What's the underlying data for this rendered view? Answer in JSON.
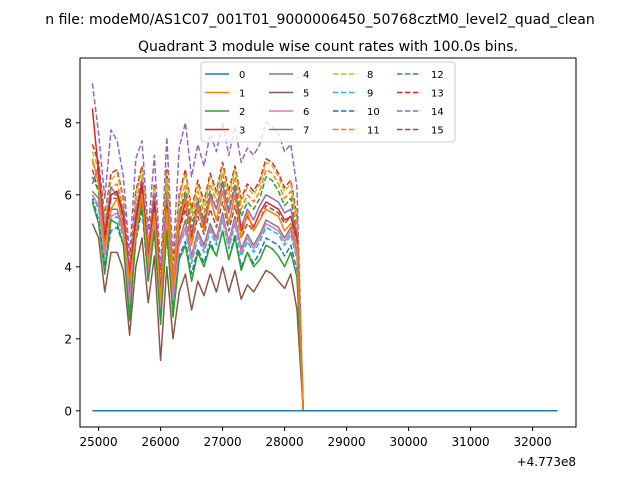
{
  "chart_data": {
    "type": "line",
    "suptitle": "n file: modeM0/AS1C07_001T01_9000006450_50768cztM0_level2_quad_clean",
    "title": "Quadrant 3 module wise count rates with 100.0s bins.",
    "xlabel": "",
    "ylabel": "",
    "x_offset_label": "+4.773e8",
    "xlim": [
      24700,
      32700
    ],
    "ylim": [
      -0.45,
      9.8
    ],
    "x_ticks": [
      25000,
      26000,
      27000,
      28000,
      29000,
      30000,
      31000,
      32000
    ],
    "x_tick_labels": [
      "25000",
      "26000",
      "27000",
      "28000",
      "29000",
      "30000",
      "31000",
      "32000"
    ],
    "y_ticks": [
      0,
      2,
      4,
      6,
      8
    ],
    "y_tick_labels": [
      "0",
      "2",
      "4",
      "6",
      "8"
    ],
    "x_start": 24900,
    "x_step": 100,
    "grid": false,
    "legend_position": "top-center",
    "legend_columns": 4,
    "series": [
      {
        "name": "0",
        "color": "#1f77b4",
        "dash": "solid",
        "values": [
          0,
          0,
          0,
          0,
          0,
          0,
          0,
          0,
          0,
          0,
          0,
          0,
          0,
          0,
          0,
          0,
          0,
          0,
          0,
          0,
          0,
          0,
          0,
          0,
          0,
          0,
          0,
          0,
          0,
          0,
          0,
          0,
          0,
          0,
          0,
          0,
          0,
          0,
          0,
          0,
          0,
          0,
          0,
          0,
          0,
          0,
          0,
          0,
          0,
          0,
          0,
          0,
          0,
          0,
          0,
          0,
          0,
          0,
          0,
          0,
          0,
          0,
          0,
          0,
          0,
          0,
          0,
          0,
          0,
          0,
          0,
          0,
          0,
          0,
          0,
          0
        ]
      },
      {
        "name": "1",
        "color": "#ff7f0e",
        "dash": "solid",
        "values": [
          7.0,
          6.3,
          4.5,
          5.6,
          5.9,
          5.1,
          3.6,
          4.9,
          6.0,
          4.1,
          5.5,
          3.1,
          5.6,
          3.4,
          5.3,
          5.9,
          4.6,
          5.7,
          5.0,
          5.9,
          5.3,
          6.1,
          5.2,
          6.0,
          4.8,
          5.5,
          5.0,
          5.3,
          5.6,
          5.5,
          5.4,
          5.0,
          5.2,
          4.6,
          0,
          0,
          0,
          0,
          0,
          0,
          0,
          0,
          0,
          0,
          0,
          0,
          0,
          0,
          0,
          0,
          0,
          0,
          0,
          0,
          0,
          0,
          0,
          0,
          0,
          0,
          0,
          0,
          0,
          0,
          0,
          0,
          0,
          0,
          0,
          0,
          0,
          0,
          0,
          0,
          0,
          0
        ]
      },
      {
        "name": "2",
        "color": "#2ca02c",
        "dash": "solid",
        "values": [
          5.8,
          5.2,
          3.8,
          5.3,
          5.2,
          4.6,
          2.5,
          4.8,
          5.8,
          3.6,
          5.0,
          2.4,
          5.0,
          2.6,
          4.2,
          4.6,
          3.6,
          4.4,
          4.0,
          4.6,
          4.3,
          5.0,
          4.2,
          4.8,
          3.9,
          4.4,
          4.0,
          4.2,
          4.6,
          4.5,
          4.3,
          4.0,
          4.4,
          3.7,
          0,
          0,
          0,
          0,
          0,
          0,
          0,
          0,
          0,
          0,
          0,
          0,
          0,
          0,
          0,
          0,
          0,
          0,
          0,
          0,
          0,
          0,
          0,
          0,
          0,
          0,
          0,
          0,
          0,
          0,
          0,
          0,
          0,
          0,
          0,
          0,
          0,
          0,
          0,
          0,
          0,
          0
        ]
      },
      {
        "name": "3",
        "color": "#d62728",
        "dash": "solid",
        "values": [
          8.4,
          6.6,
          4.8,
          6.0,
          6.1,
          5.4,
          3.7,
          5.3,
          6.3,
          4.2,
          5.8,
          3.2,
          5.7,
          3.4,
          5.1,
          5.8,
          4.8,
          5.6,
          5.1,
          5.9,
          5.3,
          6.1,
          5.2,
          6.0,
          5.0,
          5.4,
          5.1,
          5.5,
          5.8,
          5.7,
          5.6,
          5.3,
          5.4,
          4.8,
          0,
          0,
          0,
          0,
          0,
          0,
          0,
          0,
          0,
          0,
          0,
          0,
          0,
          0,
          0,
          0,
          0,
          0,
          0,
          0,
          0,
          0,
          0,
          0,
          0,
          0,
          0,
          0,
          0,
          0,
          0,
          0,
          0,
          0,
          0,
          0,
          0,
          0,
          0,
          0,
          0,
          0
        ]
      },
      {
        "name": "4",
        "color": "#9467bd",
        "dash": "solid",
        "values": [
          6.3,
          6.8,
          5.0,
          6.2,
          6.0,
          5.6,
          3.8,
          5.5,
          6.4,
          4.4,
          6.0,
          3.3,
          5.9,
          3.5,
          5.4,
          6.0,
          4.9,
          5.8,
          5.2,
          6.0,
          5.6,
          6.3,
          5.5,
          6.2,
          5.1,
          5.6,
          5.3,
          5.7,
          6.0,
          5.9,
          5.8,
          5.5,
          5.6,
          4.9,
          0,
          0,
          0,
          0,
          0,
          0,
          0,
          0,
          0,
          0,
          0,
          0,
          0,
          0,
          0,
          0,
          0,
          0,
          0,
          0,
          0,
          0,
          0,
          0,
          0,
          0,
          0,
          0,
          0,
          0,
          0,
          0,
          0,
          0,
          0,
          0,
          0,
          0,
          0,
          0,
          0,
          0
        ]
      },
      {
        "name": "5",
        "color": "#8c564b",
        "dash": "solid",
        "values": [
          5.2,
          4.8,
          3.3,
          4.4,
          4.4,
          3.9,
          2.1,
          4.0,
          4.8,
          3.0,
          4.3,
          1.4,
          4.0,
          2.0,
          3.3,
          3.8,
          2.8,
          3.6,
          3.2,
          3.8,
          3.3,
          4.0,
          3.3,
          3.9,
          3.1,
          3.5,
          3.3,
          3.6,
          3.9,
          3.8,
          3.6,
          3.4,
          3.8,
          2.8,
          0,
          0,
          0,
          0,
          0,
          0,
          0,
          0,
          0,
          0,
          0,
          0,
          0,
          0,
          0,
          0,
          0,
          0,
          0,
          0,
          0,
          0,
          0,
          0,
          0,
          0,
          0,
          0,
          0,
          0,
          0,
          0,
          0,
          0,
          0,
          0,
          0,
          0,
          0,
          0,
          0,
          0
        ]
      },
      {
        "name": "6",
        "color": "#e377c2",
        "dash": "solid",
        "values": [
          6.0,
          5.7,
          4.3,
          5.4,
          5.5,
          4.9,
          3.0,
          5.0,
          5.9,
          3.8,
          5.3,
          2.9,
          5.2,
          3.1,
          4.6,
          5.1,
          4.2,
          4.9,
          4.5,
          5.1,
          4.7,
          5.4,
          4.6,
          5.3,
          4.4,
          4.8,
          4.5,
          4.8,
          5.2,
          5.1,
          5.0,
          4.7,
          5.0,
          4.3,
          0,
          0,
          0,
          0,
          0,
          0,
          0,
          0,
          0,
          0,
          0,
          0,
          0,
          0,
          0,
          0,
          0,
          0,
          0,
          0,
          0,
          0,
          0,
          0,
          0,
          0,
          0,
          0,
          0,
          0,
          0,
          0,
          0,
          0,
          0,
          0,
          0,
          0,
          0,
          0,
          0,
          0
        ]
      },
      {
        "name": "7",
        "color": "#7f7f7f",
        "dash": "solid",
        "values": [
          6.1,
          5.9,
          4.4,
          5.6,
          5.6,
          5.0,
          3.2,
          5.1,
          6.0,
          3.9,
          5.4,
          3.0,
          5.3,
          3.2,
          4.7,
          5.3,
          4.3,
          5.0,
          4.6,
          5.2,
          4.8,
          5.5,
          4.7,
          5.4,
          4.5,
          4.9,
          4.6,
          4.9,
          5.3,
          5.2,
          5.1,
          4.8,
          5.1,
          4.4,
          0,
          0,
          0,
          0,
          0,
          0,
          0,
          0,
          0,
          0,
          0,
          0,
          0,
          0,
          0,
          0,
          0,
          0,
          0,
          0,
          0,
          0,
          0,
          0,
          0,
          0,
          0,
          0,
          0,
          0,
          0,
          0,
          0,
          0,
          0,
          0,
          0,
          0,
          0,
          0,
          0,
          0
        ]
      },
      {
        "name": "8",
        "color": "#bcbd22",
        "dash": "dashed",
        "values": [
          7.2,
          6.7,
          5.3,
          6.4,
          6.6,
          5.8,
          3.7,
          6.0,
          6.7,
          4.5,
          6.2,
          3.3,
          6.6,
          3.7,
          5.9,
          6.6,
          5.5,
          6.3,
          5.7,
          6.5,
          6.0,
          6.8,
          6.0,
          6.7,
          5.8,
          6.2,
          6.0,
          6.3,
          6.9,
          6.8,
          6.5,
          6.1,
          6.3,
          5.3,
          0,
          0,
          0,
          0,
          0,
          0,
          0,
          0,
          0,
          0,
          0,
          0,
          0,
          0,
          0,
          0,
          0,
          0,
          0,
          0,
          0,
          0,
          0,
          0,
          0,
          0,
          0,
          0,
          0,
          0,
          0,
          0,
          0,
          0,
          0,
          0,
          0,
          0,
          0,
          0,
          0,
          0
        ]
      },
      {
        "name": "9",
        "color": "#17becf",
        "dash": "dashed",
        "values": [
          6.0,
          5.6,
          4.2,
          5.3,
          5.4,
          4.8,
          2.9,
          4.9,
          5.8,
          3.7,
          5.2,
          2.8,
          5.2,
          3.0,
          4.6,
          5.0,
          4.1,
          4.8,
          4.4,
          5.0,
          4.6,
          5.3,
          4.5,
          5.2,
          4.3,
          4.7,
          4.4,
          4.7,
          5.1,
          5.0,
          4.9,
          4.6,
          4.9,
          4.2,
          0,
          0,
          0,
          0,
          0,
          0,
          0,
          0,
          0,
          0,
          0,
          0,
          0,
          0,
          0,
          0,
          0,
          0,
          0,
          0,
          0,
          0,
          0,
          0,
          0,
          0,
          0,
          0,
          0,
          0,
          0,
          0,
          0,
          0,
          0,
          0,
          0,
          0,
          0,
          0,
          0,
          0
        ]
      },
      {
        "name": "10",
        "color": "#1f77b4",
        "dash": "dashed",
        "values": [
          5.9,
          5.3,
          4.0,
          5.0,
          5.1,
          4.6,
          2.7,
          4.7,
          5.6,
          3.6,
          5.0,
          2.6,
          4.9,
          2.8,
          4.3,
          4.7,
          3.8,
          4.5,
          4.1,
          4.7,
          4.3,
          5.0,
          4.2,
          4.9,
          4.0,
          4.4,
          4.1,
          4.4,
          4.8,
          4.7,
          4.6,
          4.3,
          4.6,
          3.9,
          0,
          0,
          0,
          0,
          0,
          0,
          0,
          0,
          0,
          0,
          0,
          0,
          0,
          0,
          0,
          0,
          0,
          0,
          0,
          0,
          0,
          0,
          0,
          0,
          0,
          0,
          0,
          0,
          0,
          0,
          0,
          0,
          0,
          0,
          0,
          0,
          0,
          0,
          0,
          0,
          0,
          0
        ]
      },
      {
        "name": "11",
        "color": "#ff7f0e",
        "dash": "dashed",
        "values": [
          6.9,
          6.5,
          5.1,
          6.2,
          6.3,
          5.6,
          3.6,
          5.8,
          6.5,
          4.4,
          6.0,
          3.4,
          6.4,
          3.6,
          5.7,
          6.3,
          5.3,
          6.1,
          5.5,
          6.3,
          5.8,
          6.6,
          5.8,
          6.5,
          5.6,
          6.0,
          5.8,
          6.1,
          6.7,
          6.6,
          6.3,
          5.9,
          6.1,
          5.1,
          0,
          0,
          0,
          0,
          0,
          0,
          0,
          0,
          0,
          0,
          0,
          0,
          0,
          0,
          0,
          0,
          0,
          0,
          0,
          0,
          0,
          0,
          0,
          0,
          0,
          0,
          0,
          0,
          0,
          0,
          0,
          0,
          0,
          0,
          0,
          0,
          0,
          0,
          0,
          0,
          0,
          0
        ]
      },
      {
        "name": "12",
        "color": "#2ca02c",
        "dash": "dashed",
        "values": [
          6.5,
          6.1,
          4.9,
          6.0,
          6.0,
          5.4,
          3.5,
          5.6,
          6.3,
          4.3,
          5.8,
          3.2,
          6.2,
          3.5,
          5.5,
          6.1,
          5.1,
          5.9,
          5.3,
          6.1,
          5.6,
          6.4,
          5.6,
          6.3,
          5.4,
          5.8,
          5.6,
          5.9,
          6.5,
          6.4,
          6.1,
          5.7,
          5.9,
          4.9,
          0,
          0,
          0,
          0,
          0,
          0,
          0,
          0,
          0,
          0,
          0,
          0,
          0,
          0,
          0,
          0,
          0,
          0,
          0,
          0,
          0,
          0,
          0,
          0,
          0,
          0,
          0,
          0,
          0,
          0,
          0,
          0,
          0,
          0,
          0,
          0,
          0,
          0,
          0,
          0,
          0,
          0
        ]
      },
      {
        "name": "13",
        "color": "#d62728",
        "dash": "dashed",
        "values": [
          7.4,
          6.9,
          5.4,
          6.6,
          6.7,
          5.9,
          3.9,
          6.1,
          6.8,
          4.6,
          6.3,
          3.5,
          6.7,
          3.8,
          6.0,
          6.7,
          5.6,
          6.4,
          5.8,
          6.6,
          6.1,
          6.9,
          6.1,
          6.8,
          5.9,
          6.3,
          6.1,
          6.4,
          7.0,
          6.9,
          6.6,
          6.2,
          6.4,
          5.4,
          0,
          0,
          0,
          0,
          0,
          0,
          0,
          0,
          0,
          0,
          0,
          0,
          0,
          0,
          0,
          0,
          0,
          0,
          0,
          0,
          0,
          0,
          0,
          0,
          0,
          0,
          0,
          0,
          0,
          0,
          0,
          0,
          0,
          0,
          0,
          0,
          0,
          0,
          0,
          0,
          0,
          0
        ]
      },
      {
        "name": "14",
        "color": "#9467bd",
        "dash": "dashed",
        "values": [
          9.1,
          7.7,
          5.9,
          7.8,
          7.5,
          6.5,
          4.3,
          7.0,
          7.5,
          5.0,
          7.1,
          3.9,
          7.6,
          4.2,
          7.3,
          8.0,
          6.5,
          7.4,
          6.8,
          7.7,
          7.2,
          8.0,
          7.1,
          7.9,
          6.9,
          7.3,
          7.1,
          7.4,
          8.0,
          7.9,
          7.7,
          7.2,
          7.4,
          6.2,
          0,
          0,
          0,
          0,
          0,
          0,
          0,
          0,
          0,
          0,
          0,
          0,
          0,
          0,
          0,
          0,
          0,
          0,
          0,
          0,
          0,
          0,
          0,
          0,
          0,
          0,
          0,
          0,
          0,
          0,
          0,
          0,
          0,
          0,
          0,
          0,
          0,
          0,
          0,
          0,
          0,
          0
        ]
      },
      {
        "name": "15",
        "color": "#8c564b",
        "dash": "dashed",
        "values": [
          6.7,
          6.1,
          4.6,
          5.9,
          5.9,
          5.2,
          3.2,
          5.3,
          6.1,
          4.0,
          5.6,
          2.9,
          5.8,
          3.3,
          5.0,
          5.6,
          4.6,
          5.4,
          4.9,
          5.6,
          5.1,
          5.8,
          5.0,
          5.7,
          4.8,
          5.2,
          5.0,
          5.3,
          5.7,
          5.6,
          5.5,
          5.2,
          5.4,
          4.6,
          0,
          0,
          0,
          0,
          0,
          0,
          0,
          0,
          0,
          0,
          0,
          0,
          0,
          0,
          0,
          0,
          0,
          0,
          0,
          0,
          0,
          0,
          0,
          0,
          0,
          0,
          0,
          0,
          0,
          0,
          0,
          0,
          0,
          0,
          0,
          0,
          0,
          0,
          0,
          0,
          0,
          0
        ]
      }
    ]
  }
}
